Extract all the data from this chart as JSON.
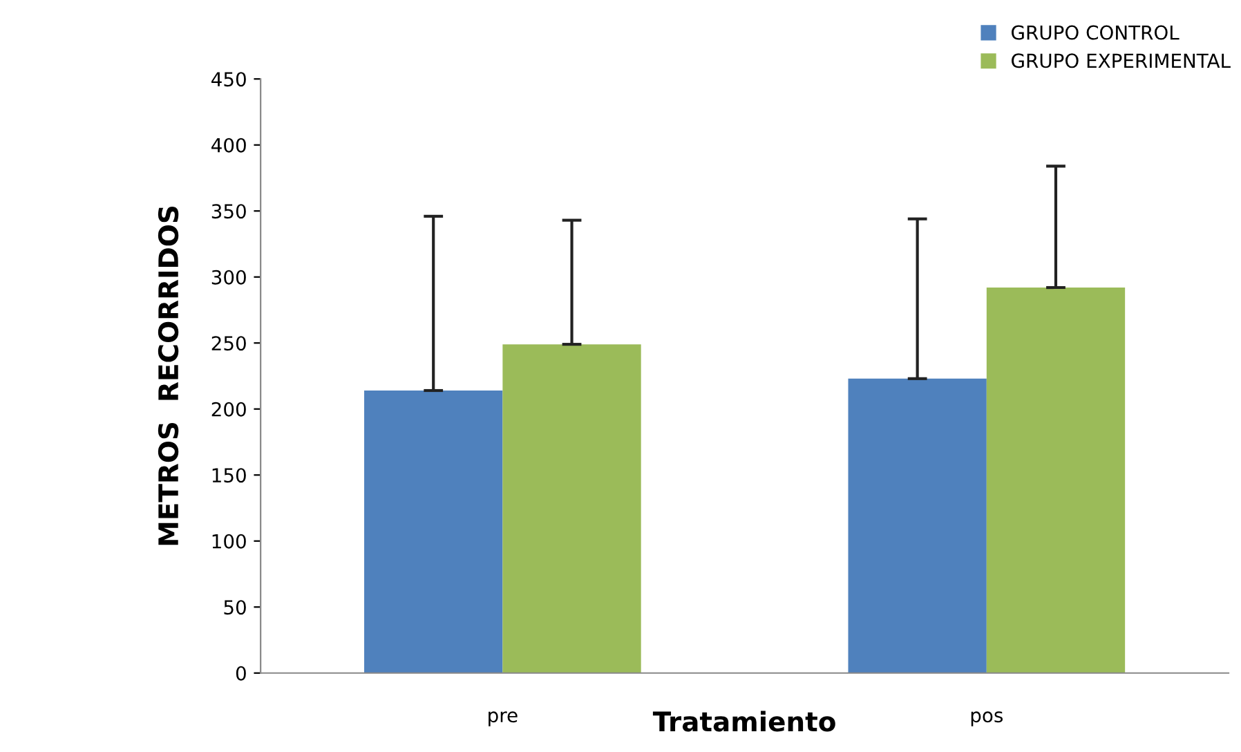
{
  "chart_data": {
    "type": "bar",
    "xlabel": "Tratamiento",
    "ylabel": "METROS  RECORRIDOS",
    "categories": [
      "pre",
      "pos"
    ],
    "series": [
      {
        "name": "GRUPO CONTROL",
        "color": "#4f81bd",
        "values": [
          214,
          223
        ],
        "errors": [
          [
            214,
            346
          ],
          [
            223,
            344
          ]
        ]
      },
      {
        "name": "GRUPO EXPERIMENTAL",
        "color": "#9bbb59",
        "values": [
          249,
          292
        ],
        "errors": [
          [
            249,
            343
          ],
          [
            292,
            384
          ]
        ]
      }
    ],
    "ylim": [
      0,
      450
    ],
    "yticks": [
      0,
      50,
      100,
      150,
      200,
      250,
      300,
      350,
      400,
      450
    ],
    "grid": false,
    "legend": "top right"
  }
}
